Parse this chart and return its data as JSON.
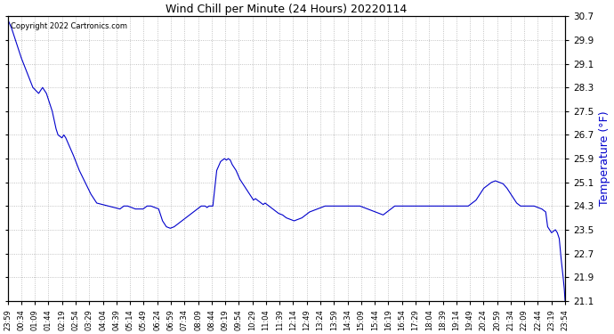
{
  "title": "Wind Chill per Minute (24 Hours) 20220114",
  "ylabel": "Temperature (°F)",
  "copyright_text": "Copyright 2022 Cartronics.com",
  "line_color": "#0000CC",
  "ylabel_color": "#0000CC",
  "background_color": "#ffffff",
  "grid_color": "#aaaaaa",
  "ylim_min": 21.1,
  "ylim_max": 30.7,
  "yticks": [
    21.1,
    21.9,
    22.7,
    23.5,
    24.3,
    25.1,
    25.9,
    26.7,
    27.5,
    28.3,
    29.1,
    29.9,
    30.7
  ],
  "x_labels": [
    "23:59",
    "00:34",
    "01:09",
    "01:44",
    "02:19",
    "02:54",
    "03:29",
    "04:04",
    "04:39",
    "05:14",
    "05:49",
    "06:24",
    "06:59",
    "07:34",
    "08:09",
    "08:44",
    "09:19",
    "09:54",
    "10:29",
    "11:04",
    "11:39",
    "12:14",
    "12:49",
    "13:24",
    "13:59",
    "14:34",
    "15:09",
    "15:44",
    "16:19",
    "16:54",
    "17:29",
    "18:04",
    "18:39",
    "19:14",
    "19:49",
    "20:24",
    "20:59",
    "21:34",
    "22:09",
    "22:44",
    "23:19",
    "23:54"
  ],
  "data_points": [
    [
      0,
      30.6
    ],
    [
      10,
      30.3
    ],
    [
      20,
      29.9
    ],
    [
      35,
      29.3
    ],
    [
      50,
      28.8
    ],
    [
      65,
      28.3
    ],
    [
      80,
      28.1
    ],
    [
      90,
      28.3
    ],
    [
      100,
      28.1
    ],
    [
      115,
      27.5
    ],
    [
      125,
      26.9
    ],
    [
      130,
      26.7
    ],
    [
      140,
      26.6
    ],
    [
      145,
      26.7
    ],
    [
      150,
      26.6
    ],
    [
      160,
      26.3
    ],
    [
      170,
      26.0
    ],
    [
      185,
      25.5
    ],
    [
      200,
      25.1
    ],
    [
      215,
      24.7
    ],
    [
      230,
      24.4
    ],
    [
      245,
      24.35
    ],
    [
      260,
      24.3
    ],
    [
      275,
      24.25
    ],
    [
      290,
      24.2
    ],
    [
      300,
      24.3
    ],
    [
      310,
      24.3
    ],
    [
      320,
      24.25
    ],
    [
      330,
      24.2
    ],
    [
      340,
      24.2
    ],
    [
      350,
      24.2
    ],
    [
      360,
      24.3
    ],
    [
      370,
      24.3
    ],
    [
      380,
      24.25
    ],
    [
      390,
      24.2
    ],
    [
      400,
      23.8
    ],
    [
      410,
      23.6
    ],
    [
      420,
      23.55
    ],
    [
      430,
      23.6
    ],
    [
      440,
      23.7
    ],
    [
      450,
      23.8
    ],
    [
      460,
      23.9
    ],
    [
      470,
      24.0
    ],
    [
      480,
      24.1
    ],
    [
      490,
      24.2
    ],
    [
      500,
      24.3
    ],
    [
      510,
      24.3
    ],
    [
      515,
      24.25
    ],
    [
      520,
      24.3
    ],
    [
      530,
      24.3
    ],
    [
      540,
      25.5
    ],
    [
      550,
      25.8
    ],
    [
      560,
      25.9
    ],
    [
      565,
      25.85
    ],
    [
      570,
      25.9
    ],
    [
      575,
      25.85
    ],
    [
      580,
      25.7
    ],
    [
      590,
      25.5
    ],
    [
      600,
      25.2
    ],
    [
      615,
      24.9
    ],
    [
      625,
      24.7
    ],
    [
      630,
      24.6
    ],
    [
      635,
      24.5
    ],
    [
      640,
      24.55
    ],
    [
      645,
      24.5
    ],
    [
      650,
      24.45
    ],
    [
      655,
      24.4
    ],
    [
      660,
      24.35
    ],
    [
      665,
      24.4
    ],
    [
      670,
      24.35
    ],
    [
      675,
      24.3
    ],
    [
      680,
      24.25
    ],
    [
      685,
      24.2
    ],
    [
      690,
      24.15
    ],
    [
      695,
      24.1
    ],
    [
      700,
      24.05
    ],
    [
      710,
      24.0
    ],
    [
      720,
      23.9
    ],
    [
      730,
      23.85
    ],
    [
      740,
      23.8
    ],
    [
      750,
      23.85
    ],
    [
      760,
      23.9
    ],
    [
      770,
      24.0
    ],
    [
      780,
      24.1
    ],
    [
      790,
      24.15
    ],
    [
      800,
      24.2
    ],
    [
      810,
      24.25
    ],
    [
      820,
      24.3
    ],
    [
      830,
      24.3
    ],
    [
      840,
      24.3
    ],
    [
      850,
      24.3
    ],
    [
      860,
      24.3
    ],
    [
      870,
      24.3
    ],
    [
      880,
      24.3
    ],
    [
      890,
      24.3
    ],
    [
      900,
      24.3
    ],
    [
      910,
      24.3
    ],
    [
      920,
      24.25
    ],
    [
      930,
      24.2
    ],
    [
      940,
      24.15
    ],
    [
      950,
      24.1
    ],
    [
      960,
      24.05
    ],
    [
      970,
      24.0
    ],
    [
      980,
      24.1
    ],
    [
      990,
      24.2
    ],
    [
      1000,
      24.3
    ],
    [
      1010,
      24.3
    ],
    [
      1020,
      24.3
    ],
    [
      1030,
      24.3
    ],
    [
      1040,
      24.3
    ],
    [
      1050,
      24.3
    ],
    [
      1060,
      24.3
    ],
    [
      1070,
      24.3
    ],
    [
      1080,
      24.3
    ],
    [
      1090,
      24.3
    ],
    [
      1100,
      24.3
    ],
    [
      1110,
      24.3
    ],
    [
      1120,
      24.3
    ],
    [
      1130,
      24.3
    ],
    [
      1140,
      24.3
    ],
    [
      1150,
      24.3
    ],
    [
      1160,
      24.3
    ],
    [
      1170,
      24.3
    ],
    [
      1180,
      24.3
    ],
    [
      1190,
      24.3
    ],
    [
      1200,
      24.4
    ],
    [
      1210,
      24.5
    ],
    [
      1220,
      24.7
    ],
    [
      1230,
      24.9
    ],
    [
      1240,
      25.0
    ],
    [
      1250,
      25.1
    ],
    [
      1260,
      25.15
    ],
    [
      1270,
      25.1
    ],
    [
      1280,
      25.05
    ],
    [
      1290,
      24.9
    ],
    [
      1295,
      24.8
    ],
    [
      1300,
      24.7
    ],
    [
      1305,
      24.6
    ],
    [
      1310,
      24.5
    ],
    [
      1315,
      24.4
    ],
    [
      1320,
      24.35
    ],
    [
      1325,
      24.3
    ],
    [
      1330,
      24.3
    ],
    [
      1340,
      24.3
    ],
    [
      1350,
      24.3
    ],
    [
      1360,
      24.3
    ],
    [
      1370,
      24.25
    ],
    [
      1380,
      24.2
    ],
    [
      1385,
      24.15
    ],
    [
      1390,
      24.1
    ],
    [
      1395,
      23.6
    ],
    [
      1400,
      23.5
    ],
    [
      1405,
      23.4
    ],
    [
      1410,
      23.45
    ],
    [
      1415,
      23.5
    ],
    [
      1420,
      23.4
    ],
    [
      1425,
      23.2
    ],
    [
      1430,
      22.5
    ],
    [
      1435,
      21.9
    ],
    [
      1438,
      21.5
    ],
    [
      1440,
      21.1
    ]
  ]
}
